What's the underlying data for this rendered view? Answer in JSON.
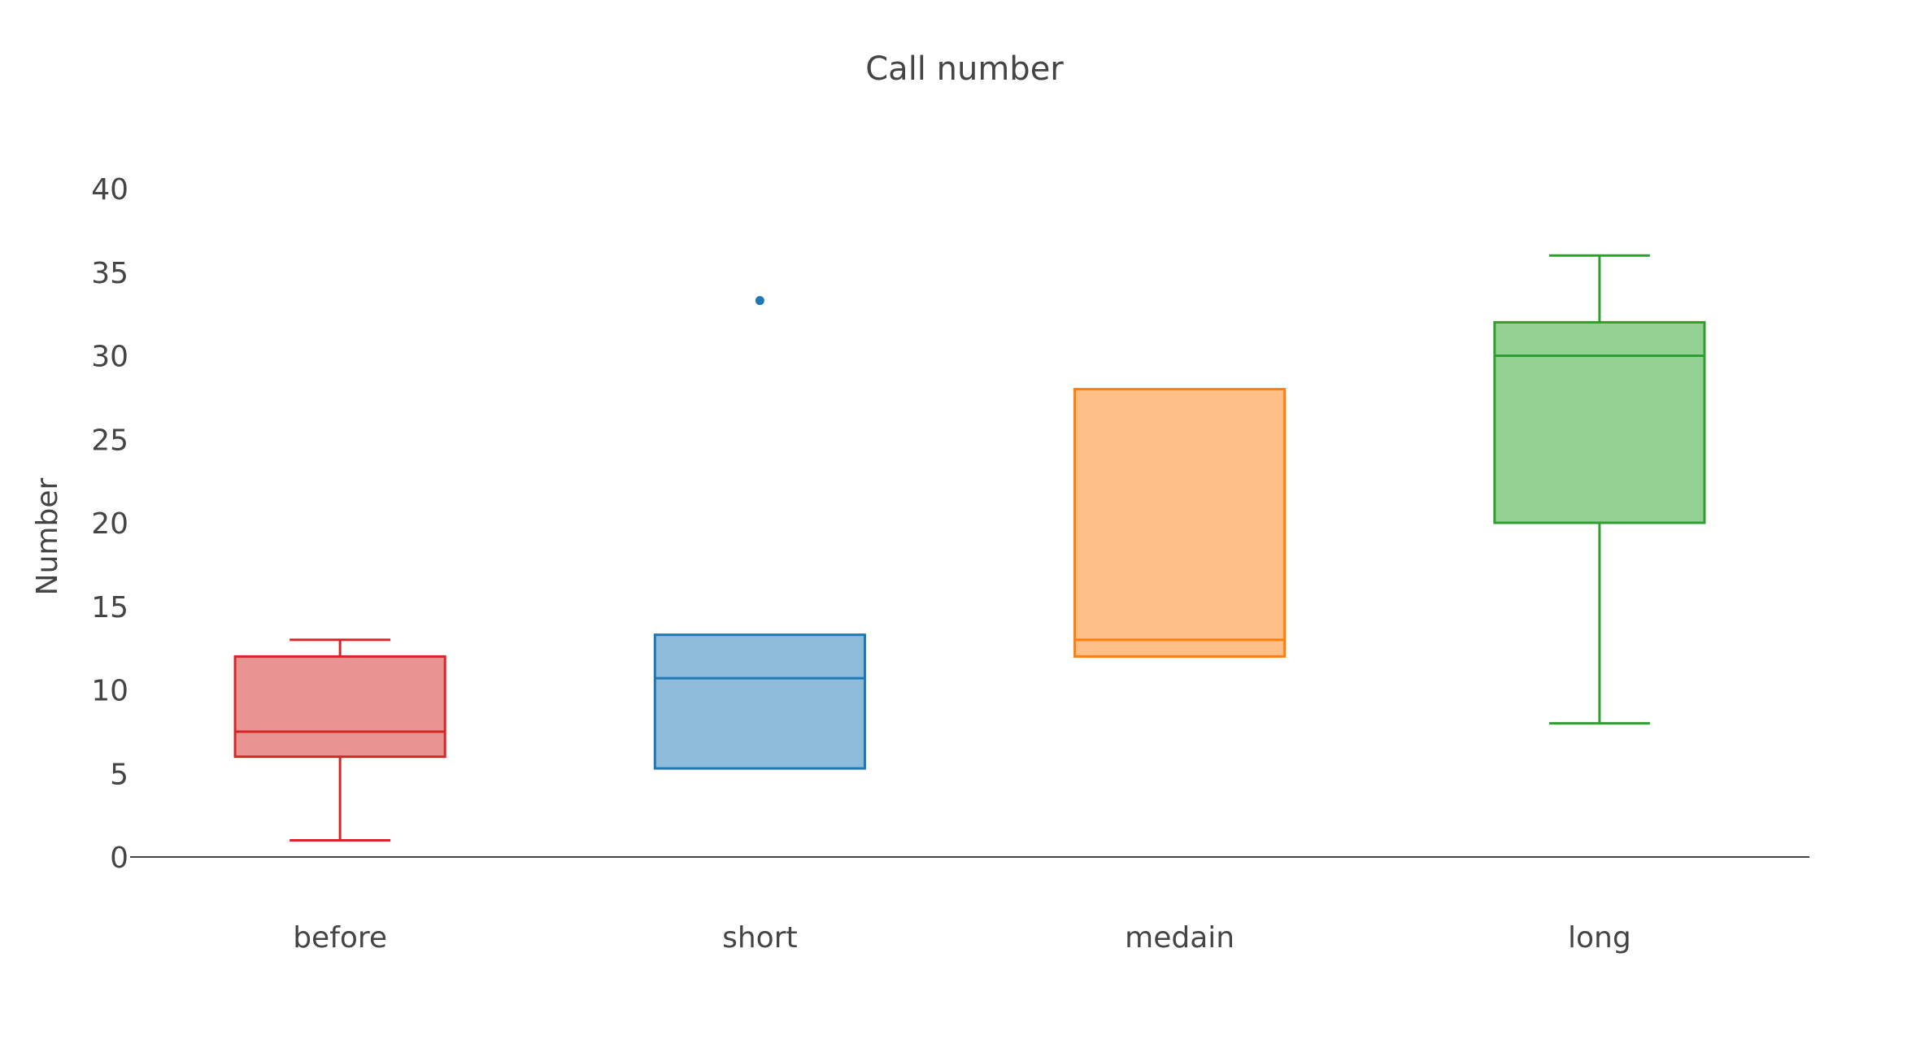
{
  "chart_data": {
    "type": "box",
    "title": "Call number",
    "xlabel": "",
    "ylabel": "Number",
    "ylim": [
      0,
      40
    ],
    "yticks": [
      0,
      5,
      10,
      15,
      20,
      25,
      30,
      35,
      40
    ],
    "categories": [
      "before",
      "short",
      "medain",
      "long"
    ],
    "boxes": [
      {
        "name": "before",
        "min": 1,
        "q1": 6,
        "median": 7.5,
        "q3": 12,
        "max": 13,
        "outliers": [],
        "color": "#d62728",
        "fill": "#ea9393"
      },
      {
        "name": "short",
        "min": 5.3,
        "q1": 5.3,
        "median": 10.7,
        "q3": 13.3,
        "max": 13.3,
        "outliers": [
          33.3
        ],
        "color": "#1f77b4",
        "fill": "#8fbbdb"
      },
      {
        "name": "medain",
        "min": 12,
        "q1": 12,
        "median": 13,
        "q3": 28,
        "max": 28,
        "outliers": [],
        "color": "#ff7f0e",
        "fill": "#ffbf86"
      },
      {
        "name": "long",
        "min": 8,
        "q1": 20,
        "median": 30,
        "q3": 32,
        "max": 36,
        "outliers": [],
        "color": "#2ca02c",
        "fill": "#95d095"
      }
    ]
  }
}
